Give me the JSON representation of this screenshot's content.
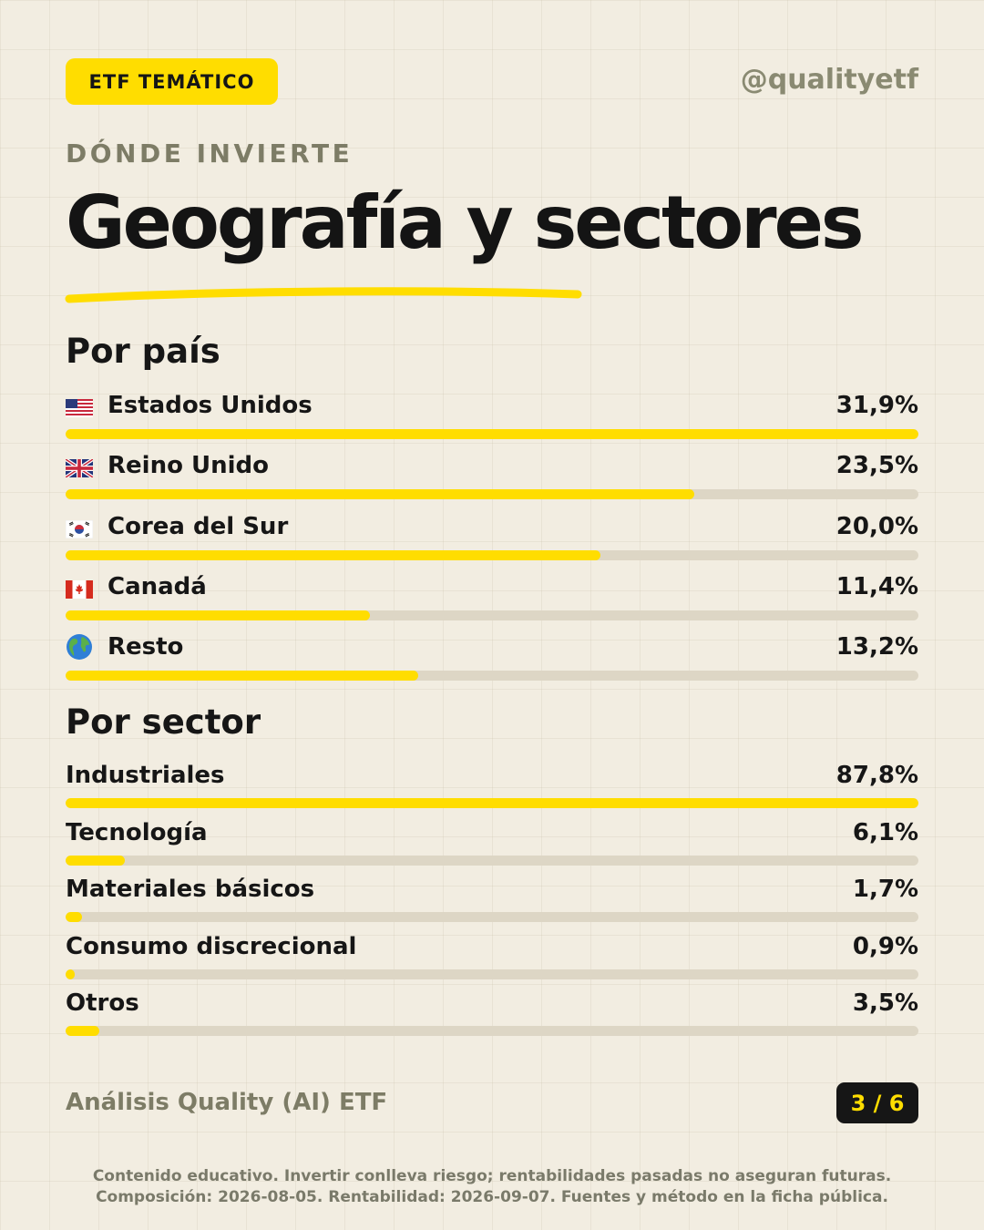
{
  "header": {
    "badge": "ETF TEMÁTICO",
    "handle": "@qualityetf"
  },
  "kicker": "DÓNDE INVIERTE",
  "title": "Geografía y sectores",
  "colors": {
    "accent": "#ffdd00",
    "track": "#ddd6c5",
    "background": "#f2ede1",
    "text": "#161616",
    "muted": "#7d7c66"
  },
  "chart_data": [
    {
      "type": "bar",
      "title": "Por país",
      "orientation": "horizontal",
      "categories": [
        "Estados Unidos",
        "Reino Unido",
        "Corea del Sur",
        "Canadá",
        "Resto"
      ],
      "values": [
        31.9,
        23.5,
        20.0,
        11.4,
        13.2
      ],
      "value_labels": [
        "31,9%",
        "23,5%",
        "20,0%",
        "11,4%",
        "13,2%"
      ],
      "icons": [
        "us-flag-icon",
        "uk-flag-icon",
        "south-korea-flag-icon",
        "canada-flag-icon",
        "globe-icon"
      ],
      "scale_max": 31.9
    },
    {
      "type": "bar",
      "title": "Por sector",
      "orientation": "horizontal",
      "categories": [
        "Industriales",
        "Tecnología",
        "Materiales básicos",
        "Consumo discrecional",
        "Otros"
      ],
      "values": [
        87.8,
        6.1,
        1.7,
        0.9,
        3.5
      ],
      "value_labels": [
        "87,8%",
        "6,1%",
        "1,7%",
        "0,9%",
        "3,5%"
      ],
      "scale_max": 87.8
    }
  ],
  "footer": {
    "name": "Análisis Quality (AI) ETF",
    "page": "3 / 6",
    "disclaimer_line1": "Contenido educativo. Invertir conlleva riesgo; rentabilidades pasadas no aseguran futuras.",
    "disclaimer_line2": "Composición: 2026-08-05. Rentabilidad: 2026-09-07. Fuentes y método en la ficha pública."
  }
}
